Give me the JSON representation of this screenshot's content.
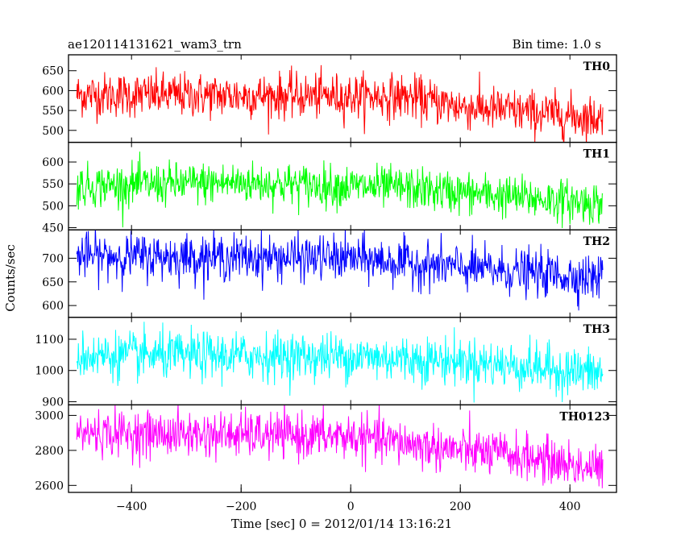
{
  "header": {
    "title": "ae120114131621_wam3_trn",
    "bin_time": "Bin time: 1.0 s"
  },
  "axes": {
    "xlabel": "Time [sec] 0 = 2012/01/14 13:16:21",
    "ylabel": "Counts/sec"
  },
  "chart_data": {
    "type": "line",
    "title": "ae120114131621_wam3_trn",
    "xlabel": "Time [sec] 0 = 2012/01/14 13:16:21",
    "ylabel": "Counts/sec",
    "xlim": [
      -515,
      485
    ],
    "x_ticks": [
      -400,
      -200,
      0,
      200,
      400
    ],
    "x_range": [
      -500,
      460
    ],
    "bin_time_s": 1.0,
    "grid": false,
    "legend": "none",
    "panels": [
      {
        "name": "TH0",
        "color": "#ff0000",
        "ylim": [
          470,
          690
        ],
        "y_ticks": [
          500,
          550,
          600,
          650
        ],
        "trend": [
          [
            -500,
            590
          ],
          [
            100,
            585
          ],
          [
            200,
            560
          ],
          [
            460,
            530
          ]
        ],
        "noise_sd": 28
      },
      {
        "name": "TH1",
        "color": "#00ff00",
        "ylim": [
          445,
          645
        ],
        "y_ticks": [
          450,
          500,
          550,
          600
        ],
        "trend": [
          [
            -500,
            545
          ],
          [
            -200,
            553
          ],
          [
            100,
            540
          ],
          [
            300,
            520
          ],
          [
            460,
            505
          ]
        ],
        "noise_sd": 24
      },
      {
        "name": "TH2",
        "color": "#0000ff",
        "ylim": [
          575,
          760
        ],
        "y_ticks": [
          600,
          650,
          700
        ],
        "trend": [
          [
            -500,
            705
          ],
          [
            0,
            700
          ],
          [
            200,
            680
          ],
          [
            460,
            658
          ]
        ],
        "noise_sd": 24
      },
      {
        "name": "TH3",
        "color": "#00ffff",
        "ylim": [
          890,
          1170
        ],
        "y_ticks": [
          900,
          1000,
          1100
        ],
        "trend": [
          [
            -500,
            1048
          ],
          [
            0,
            1045
          ],
          [
            200,
            1030
          ],
          [
            460,
            990
          ]
        ],
        "noise_sd": 38
      },
      {
        "name": "TH0123",
        "color": "#ff00ff",
        "ylim": [
          2560,
          3060
        ],
        "y_ticks": [
          2600,
          2800,
          3000
        ],
        "trend": [
          [
            -500,
            2900
          ],
          [
            0,
            2880
          ],
          [
            200,
            2800
          ],
          [
            300,
            2770
          ],
          [
            460,
            2690
          ]
        ],
        "noise_sd": 65
      }
    ]
  }
}
